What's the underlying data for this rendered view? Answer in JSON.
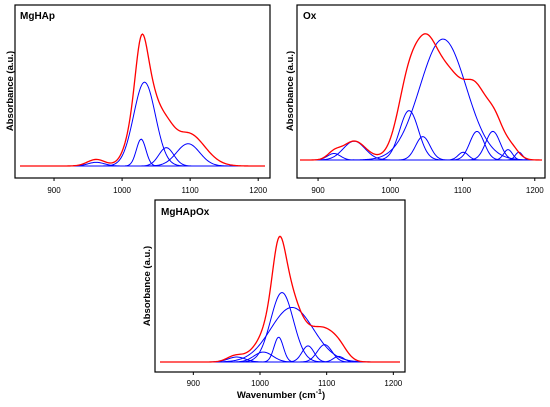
{
  "figure": {
    "curve_colors": {
      "component": "#0000ff",
      "envelope": "#ff0000"
    }
  },
  "chart_data": [
    {
      "type": "line",
      "title": "MgHAp",
      "xlabel": "",
      "ylabel": "Absorbance (a.u.)",
      "xlim": [
        850,
        1210
      ],
      "ylim": [
        0,
        1.0
      ],
      "xticks": [
        "900",
        "1000",
        "1100",
        "1200"
      ],
      "grid": false,
      "legend": "none",
      "series": [
        {
          "role": "component",
          "peaks": [
            [
              962,
              0.028,
              12
            ],
            [
              1028,
              0.205,
              7
            ],
            [
              1033,
              0.64,
              16
            ],
            [
              1065,
              0.14,
              11
            ],
            [
              1097,
              0.17,
              17
            ]
          ]
        },
        {
          "role": "envelope",
          "peaks": [
            [
              962,
              0.05,
              13
            ],
            [
              1028,
              0.3,
              8
            ],
            [
              1033,
              0.72,
              17
            ],
            [
              1065,
              0.16,
              12
            ],
            [
              1097,
              0.25,
              24
            ]
          ]
        }
      ]
    },
    {
      "type": "line",
      "title": "Ox",
      "xlabel": "",
      "ylabel": "Absorbance (a.u.)",
      "xlim": [
        875,
        1210
      ],
      "ylim": [
        0,
        1.0
      ],
      "xticks": [
        "900",
        "1000",
        "1100",
        "1200"
      ],
      "grid": false,
      "legend": "none",
      "series": [
        {
          "role": "component",
          "peaks": [
            [
              922,
              0.05,
              9
            ],
            [
              950,
              0.145,
              15
            ],
            [
              1026,
              0.38,
              13
            ],
            [
              1045,
              0.18,
              10
            ],
            [
              1073,
              0.93,
              32
            ],
            [
              1101,
              0.06,
              7
            ],
            [
              1120,
              0.22,
              10
            ],
            [
              1142,
              0.22,
              10
            ],
            [
              1163,
              0.08,
              6
            ],
            [
              1178,
              0.06,
              5
            ]
          ]
        },
        {
          "role": "envelope",
          "peaks": [
            [
              922,
              0.05,
              9
            ],
            [
              950,
              0.145,
              16
            ],
            [
              1026,
              0.45,
              15
            ],
            [
              1050,
              0.28,
              13
            ],
            [
              1073,
              0.72,
              33
            ],
            [
              1120,
              0.3,
              14
            ],
            [
              1145,
              0.25,
              12
            ],
            [
              1168,
              0.08,
              10
            ]
          ]
        }
      ]
    },
    {
      "type": "line",
      "title": "MgHApOx",
      "xlabel": "Wavenumber (cm",
      "xlabel_superscript": "-1",
      "xlabel_suffix": ")",
      "ylabel": "Absorbance (a.u.)",
      "xlim": [
        850,
        1210
      ],
      "ylim": [
        0,
        1.0
      ],
      "xticks": [
        "900",
        "1000",
        "1100",
        "1200"
      ],
      "grid": false,
      "legend": "none",
      "series": [
        {
          "role": "component",
          "peaks": [
            [
              965,
              0.04,
              13
            ],
            [
              1005,
              0.08,
              14
            ],
            [
              1028,
              0.2,
              7
            ],
            [
              1033,
              0.56,
              17
            ],
            [
              1048,
              0.44,
              32
            ],
            [
              1072,
              0.13,
              9
            ],
            [
              1097,
              0.14,
              11
            ],
            [
              1118,
              0.045,
              8
            ]
          ]
        },
        {
          "role": "envelope",
          "peaks": [
            [
              962,
              0.045,
              12
            ],
            [
              1000,
              0.1,
              18
            ],
            [
              1028,
              0.34,
              9
            ],
            [
              1033,
              0.6,
              18
            ],
            [
              1060,
              0.2,
              20
            ],
            [
              1097,
              0.23,
              18
            ],
            [
              1120,
              0.07,
              12
            ]
          ]
        }
      ]
    }
  ]
}
